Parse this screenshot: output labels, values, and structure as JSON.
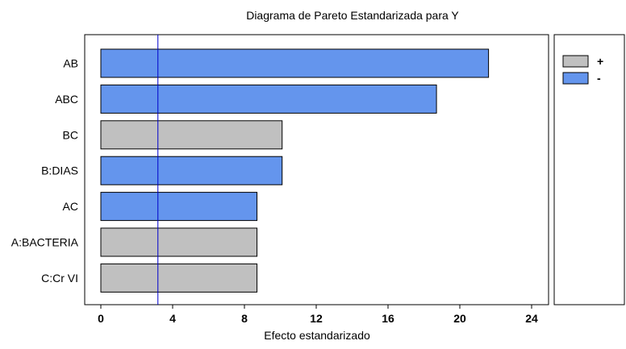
{
  "chart_data": {
    "type": "bar",
    "orientation": "horizontal",
    "title": "Diagrama de Pareto Estandarizada para Y",
    "xlabel": "Efecto estandarizado",
    "ylabel": "",
    "xlim": [
      0,
      24
    ],
    "xticks": [
      "0",
      "4",
      "8",
      "12",
      "16",
      "20",
      "24"
    ],
    "reference_line": 3.18,
    "categories": [
      "AB",
      "ABC",
      "BC",
      "B:DIAS",
      "AC",
      "A:BACTERIA",
      "C:Cr VI"
    ],
    "values": [
      21.6,
      18.7,
      10.1,
      10.1,
      8.7,
      8.7,
      8.7
    ],
    "signs": [
      "-",
      "-",
      "+",
      "-",
      "-",
      "+",
      "+"
    ],
    "colors": {
      "+": "#c0c0c0",
      "-": "#6495ed",
      "line": "#0000cc"
    },
    "legend": {
      "placement": "top-right",
      "entries": [
        {
          "sign": "+",
          "label": "+"
        },
        {
          "sign": "-",
          "label": "-"
        }
      ]
    }
  }
}
